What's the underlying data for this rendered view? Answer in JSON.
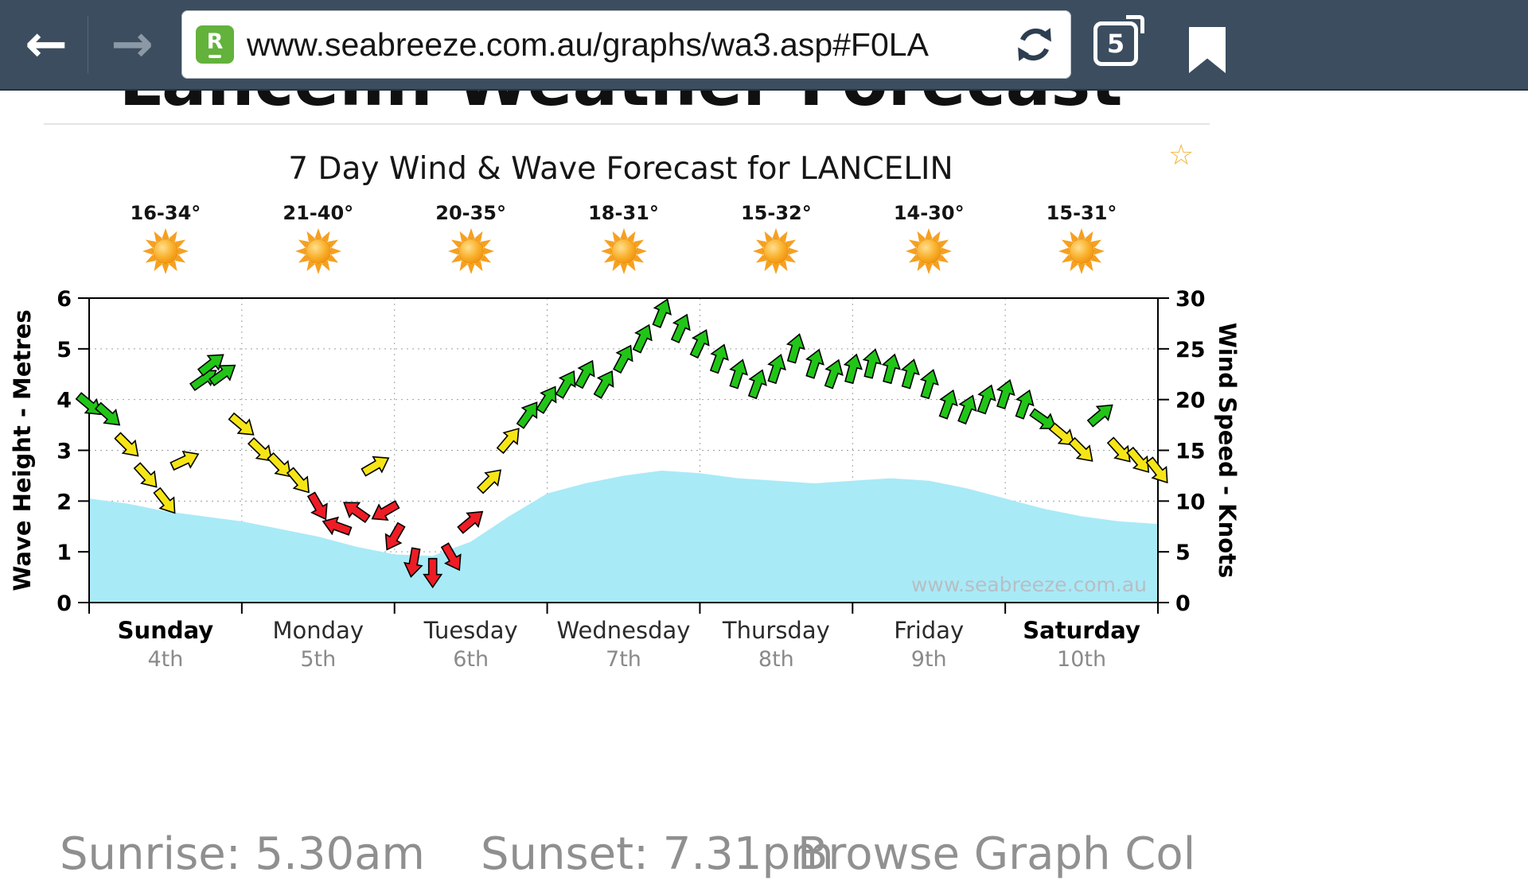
{
  "browser": {
    "back_glyph": "←",
    "forward_glyph": "→",
    "favicon_letter": "R",
    "url": "www.seabreeze.com.au/graphs/wa3.asp#F0LA",
    "tab_count": "5"
  },
  "page": {
    "clipped_heading": "Lancelin Weather Forecast",
    "favorite_star_glyph": "☆",
    "footer": {
      "sunrise": "Sunrise: 5.30am",
      "sunset": "Sunset: 7.31pm",
      "browse_link": "Browse Graph Col"
    }
  },
  "chart_data": {
    "type": "combo-area-wind-arrows",
    "title": "7 Day Wind & Wave Forecast for LANCELIN",
    "watermark": "www.seabreeze.com.au",
    "grid": true,
    "area_color": "#a9eaf7",
    "wind_colors": {
      "light": "#ee1c25",
      "moderate": "#f6e516",
      "strong": "#21c517",
      "light_max": 10,
      "moderate_max": 18
    },
    "axes": {
      "left": {
        "label": "Wave Height - Metres",
        "min": 0,
        "max": 6,
        "step": 1
      },
      "right": {
        "label": "Wind Speed - Knots",
        "min": 0,
        "max": 30,
        "step": 5
      }
    },
    "days": [
      {
        "name": "Sunday",
        "date": "4th",
        "temp_range": "16-34°",
        "emphasis": true
      },
      {
        "name": "Monday",
        "date": "5th",
        "temp_range": "21-40°",
        "emphasis": false
      },
      {
        "name": "Tuesday",
        "date": "6th",
        "temp_range": "20-35°",
        "emphasis": false
      },
      {
        "name": "Wednesday",
        "date": "7th",
        "temp_range": "18-31°",
        "emphasis": false
      },
      {
        "name": "Thursday",
        "date": "8th",
        "temp_range": "15-32°",
        "emphasis": false
      },
      {
        "name": "Friday",
        "date": "9th",
        "temp_range": "14-30°",
        "emphasis": false
      },
      {
        "name": "Saturday",
        "date": "10th",
        "temp_range": "15-31°",
        "emphasis": true
      }
    ],
    "wave_series": {
      "name": "Wave Height (metres)",
      "points": [
        [
          0.0,
          2.05
        ],
        [
          0.25,
          1.95
        ],
        [
          0.5,
          1.8
        ],
        [
          0.75,
          1.7
        ],
        [
          1.0,
          1.6
        ],
        [
          1.25,
          1.45
        ],
        [
          1.5,
          1.3
        ],
        [
          1.75,
          1.1
        ],
        [
          2.0,
          0.95
        ],
        [
          2.25,
          0.92
        ],
        [
          2.5,
          1.2
        ],
        [
          2.75,
          1.7
        ],
        [
          3.0,
          2.15
        ],
        [
          3.25,
          2.35
        ],
        [
          3.5,
          2.5
        ],
        [
          3.75,
          2.6
        ],
        [
          4.0,
          2.55
        ],
        [
          4.25,
          2.45
        ],
        [
          4.5,
          2.4
        ],
        [
          4.75,
          2.35
        ],
        [
          5.0,
          2.4
        ],
        [
          5.25,
          2.45
        ],
        [
          5.5,
          2.4
        ],
        [
          5.75,
          2.25
        ],
        [
          6.0,
          2.05
        ],
        [
          6.25,
          1.85
        ],
        [
          6.5,
          1.7
        ],
        [
          6.75,
          1.6
        ],
        [
          7.0,
          1.55
        ]
      ]
    },
    "wind_series": {
      "name": "Wind Speed (knots)",
      "points": [
        [
          0.0,
          19.5,
          40
        ],
        [
          0.125,
          18.5,
          42
        ],
        [
          0.25,
          15.5,
          45
        ],
        [
          0.375,
          12.5,
          48
        ],
        [
          0.5,
          10,
          52
        ],
        [
          0.625,
          14,
          -25
        ],
        [
          0.75,
          22,
          -35
        ],
        [
          0.8,
          23.5,
          -38
        ],
        [
          0.875,
          22.5,
          -36
        ],
        [
          1.0,
          17.5,
          40
        ],
        [
          1.125,
          15,
          44
        ],
        [
          1.25,
          13.5,
          46
        ],
        [
          1.375,
          12,
          50
        ],
        [
          1.5,
          9.5,
          60
        ],
        [
          1.625,
          7.5,
          200
        ],
        [
          1.75,
          9,
          215
        ],
        [
          1.875,
          13.5,
          -30
        ],
        [
          1.94,
          9,
          150
        ],
        [
          2.0,
          6.5,
          120
        ],
        [
          2.125,
          4,
          100
        ],
        [
          2.25,
          3,
          90
        ],
        [
          2.375,
          4.5,
          60
        ],
        [
          2.5,
          8,
          -40
        ],
        [
          2.625,
          12,
          -45
        ],
        [
          2.75,
          16,
          -50
        ],
        [
          2.875,
          18.5,
          -55
        ],
        [
          3.0,
          20,
          -58
        ],
        [
          3.125,
          21.5,
          -60
        ],
        [
          3.25,
          22.5,
          -62
        ],
        [
          3.375,
          21.5,
          -60
        ],
        [
          3.5,
          24,
          -62
        ],
        [
          3.625,
          26,
          -65
        ],
        [
          3.75,
          28.5,
          -68
        ],
        [
          3.875,
          27,
          -66
        ],
        [
          4.0,
          25.5,
          -65
        ],
        [
          4.125,
          24,
          -70
        ],
        [
          4.25,
          22.5,
          -72
        ],
        [
          4.375,
          21.5,
          -70
        ],
        [
          4.5,
          23,
          -72
        ],
        [
          4.625,
          25,
          -74
        ],
        [
          4.75,
          23.5,
          -72
        ],
        [
          4.875,
          22.5,
          -70
        ],
        [
          5.0,
          23,
          -75
        ],
        [
          5.125,
          23.5,
          -76
        ],
        [
          5.25,
          23,
          -75
        ],
        [
          5.375,
          22.5,
          -74
        ],
        [
          5.5,
          21.5,
          -73
        ],
        [
          5.625,
          19.5,
          -70
        ],
        [
          5.75,
          19,
          -68
        ],
        [
          5.875,
          20,
          -70
        ],
        [
          6.0,
          20.5,
          -72
        ],
        [
          6.125,
          19.5,
          -70
        ],
        [
          6.25,
          18,
          35
        ],
        [
          6.375,
          16.5,
          40
        ],
        [
          6.5,
          15,
          45
        ],
        [
          6.625,
          18.5,
          -40
        ],
        [
          6.75,
          15,
          48
        ],
        [
          6.875,
          14,
          50
        ],
        [
          7.0,
          13,
          52
        ]
      ]
    }
  }
}
